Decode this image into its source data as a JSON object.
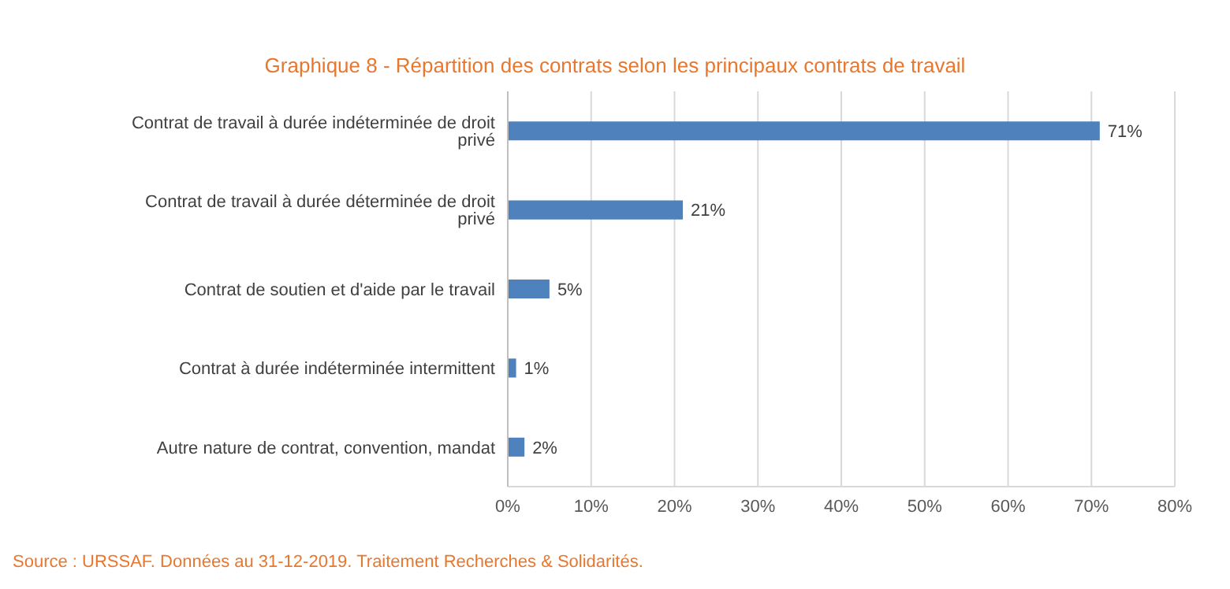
{
  "chart_data": {
    "type": "bar",
    "orientation": "horizontal",
    "title": "Graphique 8 - Répartition des contrats selon les principaux contrats de travail",
    "categories": [
      "Contrat de travail à durée indéterminée de droit privé",
      "Contrat de travail à durée déterminée de droit privé",
      "Contrat de soutien et d'aide par le travail",
      "Contrat à durée indéterminée intermittent",
      "Autre nature de contrat, convention, mandat"
    ],
    "values": [
      71,
      21,
      5,
      1,
      2
    ],
    "value_labels": [
      "71%",
      "21%",
      "5%",
      "1%",
      "2%"
    ],
    "color": "#4f81bd",
    "xlim": [
      0,
      80
    ],
    "xticks": [
      {
        "value": 0,
        "label": "0%"
      },
      {
        "value": 10,
        "label": "10%"
      },
      {
        "value": 20,
        "label": "20%"
      },
      {
        "value": 30,
        "label": "30%"
      },
      {
        "value": 40,
        "label": "40%"
      },
      {
        "value": 50,
        "label": "50%"
      },
      {
        "value": 60,
        "label": "60%"
      },
      {
        "value": 70,
        "label": "70%"
      },
      {
        "value": 80,
        "label": "80%"
      }
    ],
    "grid": "x",
    "legend": false,
    "annotations": [
      "Source : URSSAF. Données au 31-12-2019. Traitement Recherches & Solidarités."
    ]
  }
}
